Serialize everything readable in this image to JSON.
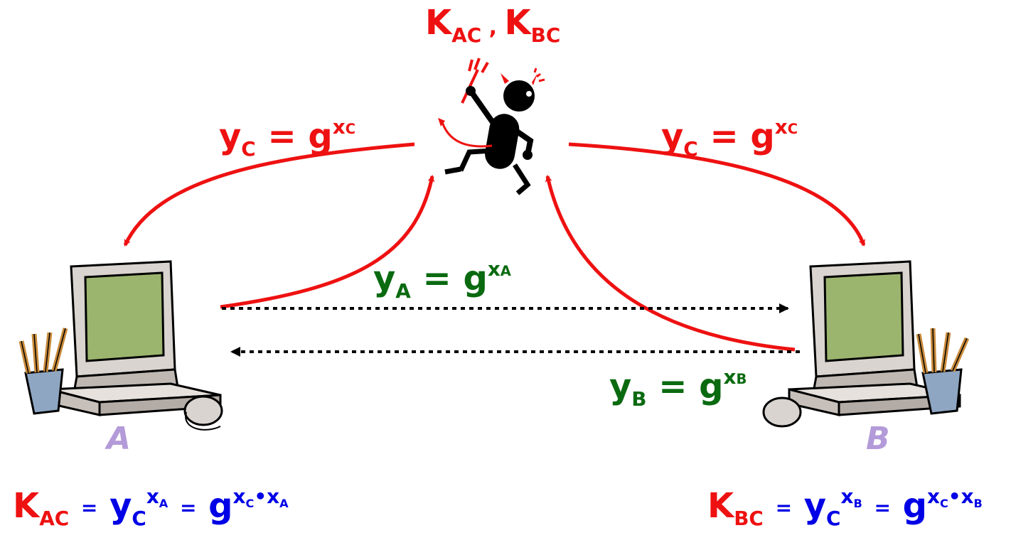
{
  "title": {
    "k": "K",
    "ac": "AC",
    "sep": " , ",
    "k2": "K",
    "bc": "BC"
  },
  "arrow_labels": {
    "left_yc": {
      "y": "y",
      "sub": "C",
      "eq": " = ",
      "g": "g",
      "sup": "x",
      "supsub": "C"
    },
    "right_yc": {
      "y": "y",
      "sub": "C",
      "eq": " = ",
      "g": "g",
      "sup": "x",
      "supsub": "C"
    },
    "ya": {
      "y": "y",
      "sub": "A",
      "eq": " = ",
      "g": "g",
      "sup": "x",
      "supsub": "A"
    },
    "yb": {
      "y": "y",
      "sub": "B",
      "eq": " = ",
      "g": "g",
      "sup": "x",
      "supsub": "B"
    }
  },
  "computers": {
    "left_label": "A",
    "right_label": "B"
  },
  "formulas": {
    "left": {
      "k": "K",
      "ksub": "AC",
      "eq1": "=",
      "y": "y",
      "ysub": "C",
      "ysup": "x",
      "ysupsub": "A",
      "eq2": "=",
      "g": "g",
      "gsup1": "x",
      "gsup1sub": "C",
      "dot": "•",
      "gsup2": "x",
      "gsup2sub": "A"
    },
    "right": {
      "k": "K",
      "ksub": "BC",
      "eq1": "=",
      "y": "y",
      "ysub": "C",
      "ysup": "x",
      "ysupsub": "B",
      "eq2": "=",
      "g": "g",
      "gsup1": "x",
      "gsup1sub": "C",
      "dot": "•",
      "gsup2": "x",
      "gsup2sub": "B"
    }
  },
  "colors": {
    "attacker": "#ee1111",
    "exchange": "#0a6a10",
    "key": "#0000e6",
    "party": "#b39ad8"
  },
  "icons": [
    "devil-icon",
    "computer-icon",
    "pencil-cup-icon",
    "mouse-icon"
  ]
}
